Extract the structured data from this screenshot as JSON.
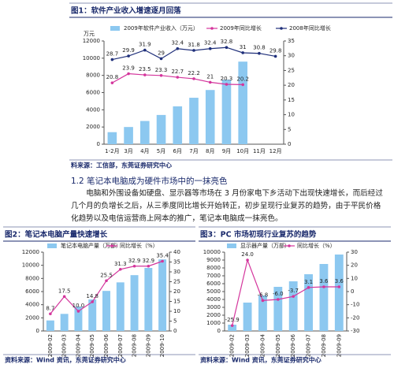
{
  "chart_data": [
    {
      "type": "combo",
      "title": "图1：软件产业收入增速逐月回落",
      "y_label": "万元",
      "note": "料来源：工信部，东莞证券研究中心",
      "categories": [
        "1-2月",
        "3月",
        "4月",
        "5月",
        "6月",
        "7月",
        "8月",
        "9月",
        "10月",
        "11月",
        "12月"
      ],
      "ylim": [
        0,
        12000
      ],
      "yticks": [
        0,
        2000,
        4000,
        6000,
        8000,
        10000,
        12000
      ],
      "y2lim": [
        0,
        35
      ],
      "y2ticks": [
        0,
        5,
        10,
        15,
        20,
        25,
        30,
        35
      ],
      "series": [
        {
          "name": "2009年软件产业收入（万元）",
          "type": "bar",
          "color": "#8cc8f0",
          "values": [
            1400,
            2000,
            2700,
            3400,
            4400,
            5400,
            6300,
            7500,
            9600,
            null,
            null
          ]
        },
        {
          "name": "2009年同比增长",
          "type": "line",
          "axis": "y2",
          "color": "#d4359c",
          "values": [
            20.8,
            23.9,
            23.5,
            23.3,
            22.7,
            22.2,
            21,
            20.3,
            20.2,
            null,
            null
          ]
        },
        {
          "name": "2008年同比增长",
          "type": "line",
          "axis": "y2",
          "color": "#1f2f7a",
          "values": [
            28.7,
            29.9,
            31.9,
            29,
            32.4,
            31.8,
            32.4,
            32.8,
            31,
            30.8,
            29.8
          ]
        }
      ]
    },
    {
      "type": "combo",
      "title": "图2：笔记本电脑产量快速增长",
      "note": "资料来源：Wind 资讯，东莞证券研究中心",
      "categories": [
        "2009-02",
        "2009-03",
        "2009-04",
        "2009-05",
        "2009-06",
        "2009-07",
        "2009-08",
        "2009-09",
        "2009-10"
      ],
      "ylim": [
        0,
        12000
      ],
      "yticks": [
        0,
        2000,
        4000,
        6000,
        8000,
        10000,
        12000
      ],
      "y2lim": [
        0,
        40
      ],
      "y2ticks": [
        0,
        5,
        10,
        15,
        20,
        25,
        30,
        35,
        40
      ],
      "series": [
        {
          "name": "笔记本电脑产量（万部）",
          "type": "bar",
          "color": "#8cc8f0",
          "values": [
            1600,
            2600,
            3700,
            4800,
            6100,
            7400,
            8500,
            9600,
            10900
          ]
        },
        {
          "name": "同比增长（%）",
          "type": "line",
          "axis": "y2",
          "color": "#d4359c",
          "values": [
            8.7,
            17.5,
            10.0,
            14.8,
            25.5,
            31.3,
            32.9,
            32.9,
            35.4
          ],
          "value_labels": [
            "8.7",
            "17.5",
            "10.0",
            "14.8",
            "25.5",
            "31.3",
            "32.9",
            "32.9",
            "35.4"
          ]
        }
      ]
    },
    {
      "type": "combo",
      "title": "图3：PC 市场初现行业复苏的趋势",
      "note": "资料来源：Wind 资讯，东莞证券研究中心",
      "categories": [
        "2009-02",
        "2009-03",
        "2009-04",
        "2009-05",
        "2009-06",
        "2009-07",
        "2009-08",
        "2009-09"
      ],
      "ylim": [
        0,
        10000
      ],
      "yticks": [
        0,
        1000,
        2000,
        3000,
        4000,
        5000,
        6000,
        7000,
        8000,
        9000,
        10000
      ],
      "y2lim": [
        -30,
        30
      ],
      "y2ticks": [
        -30,
        -20,
        -10,
        0,
        10,
        20,
        30
      ],
      "series": [
        {
          "name": "显示器产量（万部）",
          "type": "bar",
          "color": "#8cc8f0",
          "values": [
            800,
            3600,
            4500,
            5600,
            6300,
            7200,
            8500,
            9700
          ]
        },
        {
          "name": "同比增长（%）",
          "type": "line",
          "axis": "y2",
          "color": "#d4359c",
          "values": [
            -25.9,
            24.0,
            -6.8,
            -6.0,
            -3.7,
            3.1,
            3.6,
            3.6
          ],
          "value_labels": [
            "-25.9",
            "24.0",
            "-6.8",
            "-6.0",
            "-3.7",
            "3.1",
            "3.6",
            "3.6"
          ]
        }
      ]
    }
  ],
  "section": {
    "heading": "1.2 笔记本电脑成为硬件市场中的一抹亮色",
    "paragraph": "电脑和外围设备如硬盘、显示器等市场在 3 月份家电下乡活动下出现快速增长，而后经过几个月的负增长之后，从三季度同比增长开始转正，初步呈现行业复苏的趋势，由于平民价格化趋势以及电信运营商上网本的推广，笔记本电脑成一抹亮色。"
  }
}
